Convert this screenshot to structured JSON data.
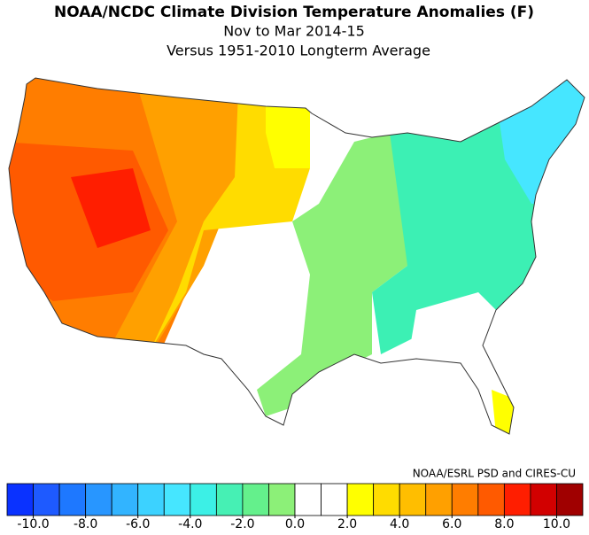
{
  "header": {
    "title": "NOAA/NCDC Climate Division Temperature Anomalies (F)",
    "subtitle": "Nov to Mar 2014-15",
    "baseline": "Versus 1951-2010 Longterm Average"
  },
  "credit": "NOAA/ESRL PSD and CIRES-CU",
  "colorbar": {
    "range": [
      -11,
      11
    ],
    "colors": [
      "#0a32ff",
      "#1e5aff",
      "#1e78ff",
      "#2896ff",
      "#32b4ff",
      "#3cd2ff",
      "#46e6ff",
      "#3cf0e6",
      "#46f0b4",
      "#64f08c",
      "#8cf078",
      "#ffffff",
      "#ffffff",
      "#ffff00",
      "#ffdc00",
      "#ffbe00",
      "#ffa000",
      "#ff7d00",
      "#ff5a00",
      "#ff1e00",
      "#d20000",
      "#a00000"
    ],
    "ticks": [
      {
        "value": -10,
        "label": "-10.0"
      },
      {
        "value": -8,
        "label": "-8.0"
      },
      {
        "value": -6,
        "label": "-6.0"
      },
      {
        "value": -4,
        "label": "-4.0"
      },
      {
        "value": -2,
        "label": "-2.0"
      },
      {
        "value": 0,
        "label": "0.0"
      },
      {
        "value": 2,
        "label": "2.0"
      },
      {
        "value": 4,
        "label": "4.0"
      },
      {
        "value": 6,
        "label": "6.0"
      },
      {
        "value": 8,
        "label": "8.0"
      },
      {
        "value": 10,
        "label": "10.0"
      }
    ]
  }
}
